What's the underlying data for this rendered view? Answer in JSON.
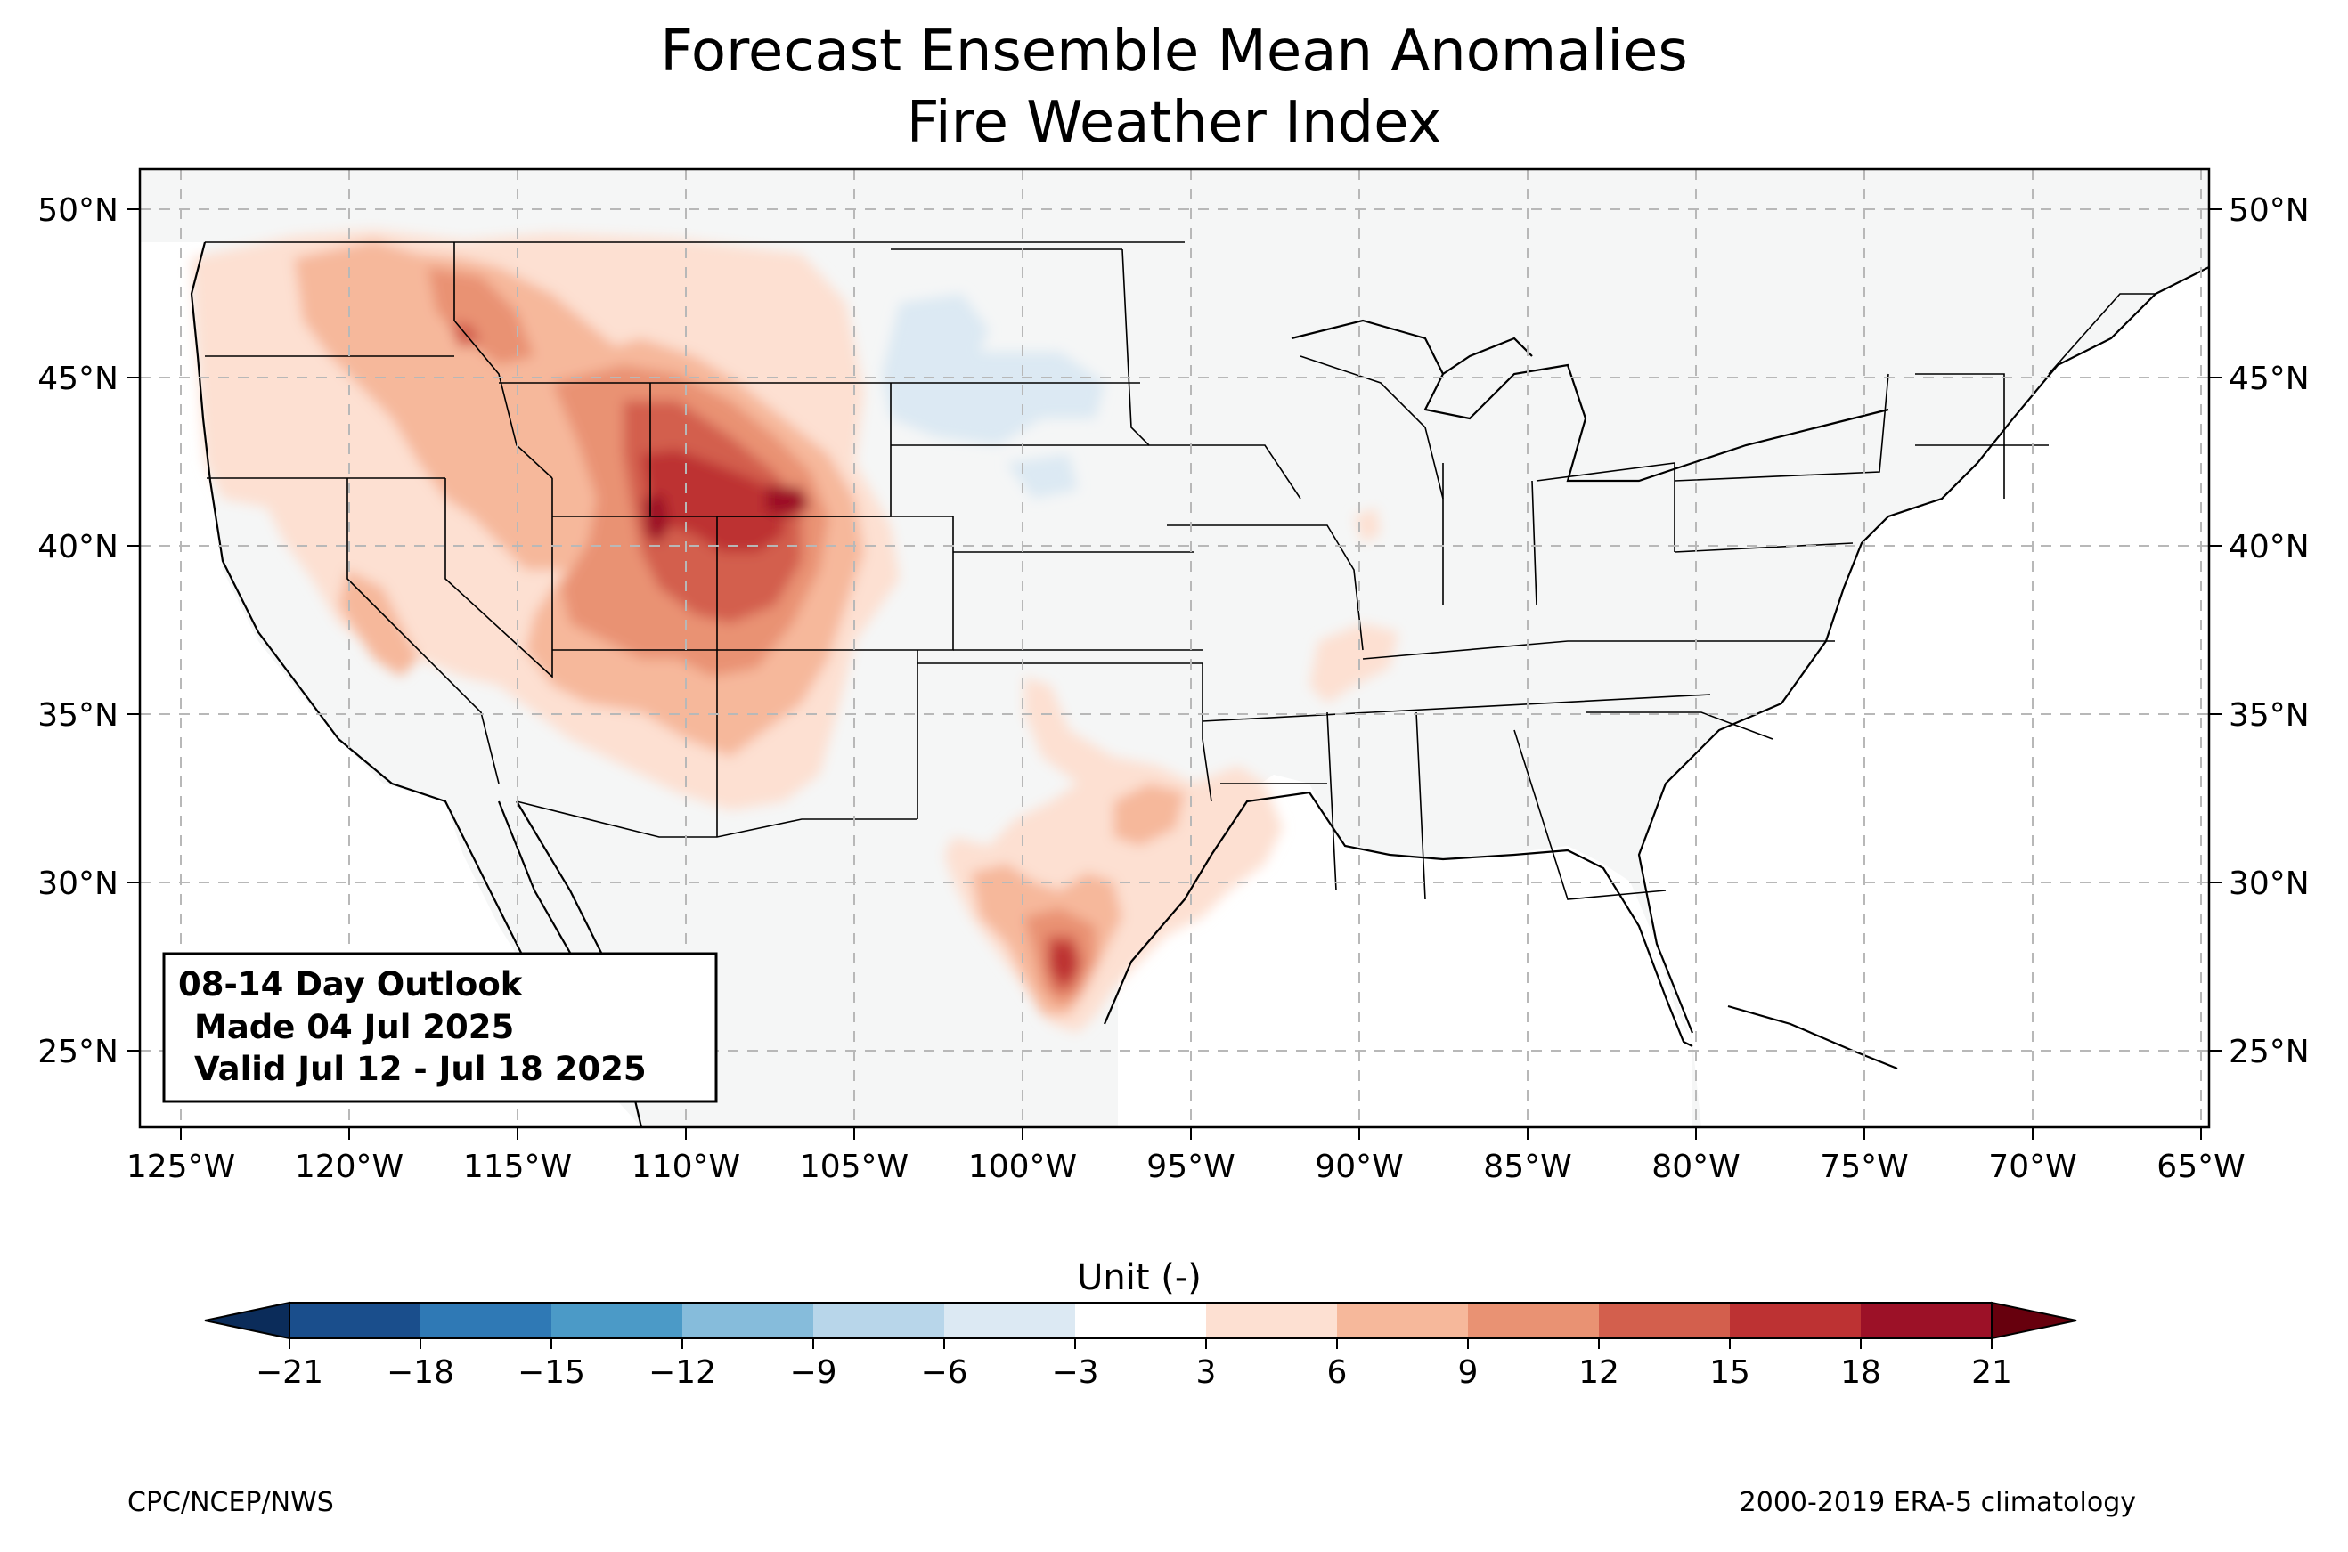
{
  "title": {
    "line1": "Forecast Ensemble Mean Anomalies",
    "line2": "Fire Weather Index"
  },
  "outlook_box": {
    "line1": "08-14 Day Outlook",
    "line2": "Made 04 Jul 2025",
    "line3": "Valid Jul 12 - Jul 18 2025"
  },
  "axes": {
    "lon_ticks": [
      "125°W",
      "120°W",
      "115°W",
      "110°W",
      "105°W",
      "100°W",
      "95°W",
      "90°W",
      "85°W",
      "80°W",
      "75°W",
      "70°W",
      "65°W"
    ],
    "lat_ticks": [
      "50°N",
      "45°N",
      "40°N",
      "35°N",
      "30°N",
      "25°N"
    ],
    "lon_range": [
      -126.3,
      -64.9
    ],
    "lat_range": [
      22.8,
      51.2
    ],
    "grid": true
  },
  "colorbar": {
    "label": "Unit (-)",
    "ticks": [
      "−21",
      "−18",
      "−15",
      "−12",
      "−9",
      "−6",
      "−3",
      "3",
      "6",
      "9",
      "12",
      "15",
      "18",
      "21"
    ],
    "colors": [
      "#1a4e8c",
      "#2f79b5",
      "#4b9ac7",
      "#86bcdb",
      "#b8d6ea",
      "#dce9f3",
      "#ffffff",
      "#fde0d2",
      "#f6b89b",
      "#e99273",
      "#d35f4d",
      "#bd3233",
      "#9c1127"
    ],
    "under_color": "#0b2c5a",
    "over_color": "#67000d"
  },
  "footer": {
    "left": "CPC/NCEP/NWS",
    "right": "2000-2019 ERA-5 climatology"
  },
  "chart_data": {
    "type": "contour-map",
    "variable": "Fire Weather Index anomaly",
    "levels": [
      -21,
      -18,
      -15,
      -12,
      -9,
      -6,
      -3,
      3,
      6,
      9,
      12,
      15,
      18,
      21
    ],
    "anomaly_regions": [
      {
        "region": "Idaho / Wyoming / Colorado / Utah",
        "peak_value": 18,
        "peak_lon": -109.5,
        "peak_lat": 41.0
      },
      {
        "region": "Colorado Front Range",
        "peak_value": 18,
        "peak_lon": -106.5,
        "peak_lat": 41.3
      },
      {
        "region": "Southern Texas",
        "peak_value": 18,
        "peak_lon": -98.7,
        "peak_lat": 27.5
      },
      {
        "region": "Pacific Northwest / Northern Rockies",
        "peak_value": 12,
        "peak_lon": -117.2,
        "peak_lat": 46.2
      },
      {
        "region": "California / Nevada",
        "peak_value": 9,
        "peak_lon": -119.0,
        "peak_lat": 38.0
      },
      {
        "region": "Arkansas / Missouri",
        "peak_value": 6,
        "peak_lon": -90.5,
        "peak_lat": 36.5
      },
      {
        "region": "Dakotas (negative)",
        "peak_value": -6,
        "peak_lon": -101.0,
        "peak_lat": 45.0
      }
    ]
  }
}
